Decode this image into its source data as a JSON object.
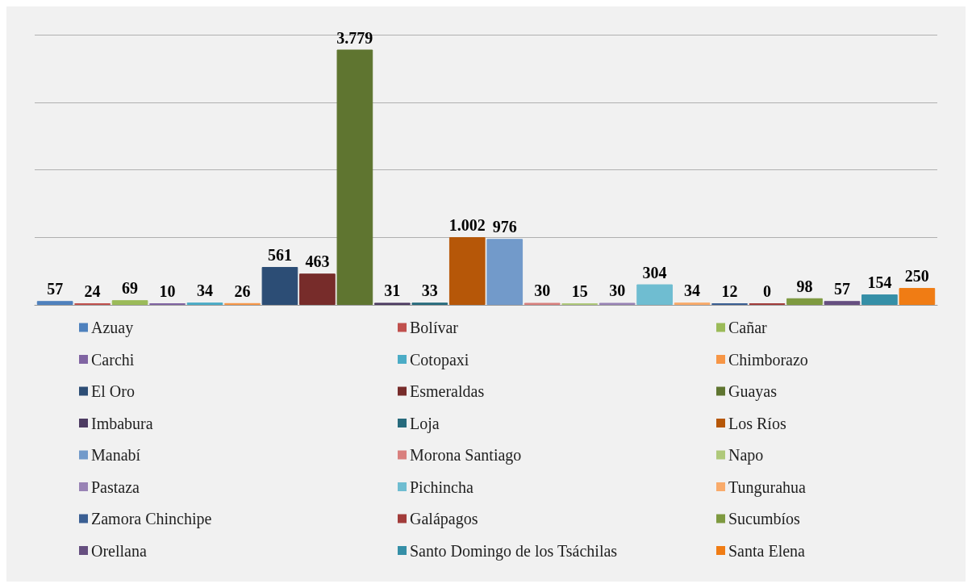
{
  "chart_data": {
    "type": "bar",
    "categories": [
      null
    ],
    "grid": "y",
    "legend": "bottom",
    "series": [
      {
        "name": "Azuay",
        "color": "#4f81bd",
        "values": [
          57
        ],
        "value_labels": [
          "57"
        ]
      },
      {
        "name": "Bolívar",
        "color": "#c0504d",
        "values": [
          24
        ],
        "value_labels": [
          "24"
        ]
      },
      {
        "name": "Cañar",
        "color": "#9bbb59",
        "values": [
          69
        ],
        "value_labels": [
          "69"
        ]
      },
      {
        "name": "Carchi",
        "color": "#8064a2",
        "values": [
          10
        ],
        "value_labels": [
          "10"
        ]
      },
      {
        "name": "Cotopaxi",
        "color": "#4bacc6",
        "values": [
          34
        ],
        "value_labels": [
          "34"
        ]
      },
      {
        "name": "Chimborazo",
        "color": "#f79646",
        "values": [
          26
        ],
        "value_labels": [
          "26"
        ]
      },
      {
        "name": "El Oro",
        "color": "#2c4d75",
        "values": [
          561
        ],
        "value_labels": [
          "561"
        ]
      },
      {
        "name": "Esmeraldas",
        "color": "#772c2a",
        "values": [
          463
        ],
        "value_labels": [
          "463"
        ]
      },
      {
        "name": "Guayas",
        "color": "#5f7530",
        "values": [
          3779
        ],
        "value_labels": [
          "3.779"
        ]
      },
      {
        "name": "Imbabura",
        "color": "#4d3b62",
        "values": [
          31
        ],
        "value_labels": [
          "31"
        ]
      },
      {
        "name": "Loja",
        "color": "#276a7c",
        "values": [
          33
        ],
        "value_labels": [
          "33"
        ]
      },
      {
        "name": "Los Ríos",
        "color": "#b65708",
        "values": [
          1002
        ],
        "value_labels": [
          "1.002"
        ]
      },
      {
        "name": "Manabí",
        "color": "#729aca",
        "values": [
          976
        ],
        "value_labels": [
          "976"
        ]
      },
      {
        "name": "Morona Santiago",
        "color": "#d9807e",
        "values": [
          30
        ],
        "value_labels": [
          "30"
        ]
      },
      {
        "name": "Napo",
        "color": "#afc97a",
        "values": [
          15
        ],
        "value_labels": [
          "15"
        ]
      },
      {
        "name": "Pastaza",
        "color": "#9983b5",
        "values": [
          30
        ],
        "value_labels": [
          "30"
        ]
      },
      {
        "name": "Pichincha",
        "color": "#6fbdd1",
        "values": [
          304
        ],
        "value_labels": [
          "304"
        ]
      },
      {
        "name": "Tungurahua",
        "color": "#f9ab6b",
        "values": [
          34
        ],
        "value_labels": [
          "34"
        ]
      },
      {
        "name": "Zamora Chinchipe",
        "color": "#3a5f93",
        "values": [
          12
        ],
        "value_labels": [
          "12"
        ]
      },
      {
        "name": "Galápagos",
        "color": "#a23c3a",
        "values": [
          0
        ],
        "value_labels": [
          "0"
        ]
      },
      {
        "name": "Sucumbíos",
        "color": "#7e9a40",
        "values": [
          98
        ],
        "value_labels": [
          "98"
        ]
      },
      {
        "name": "Orellana",
        "color": "#664f80",
        "values": [
          57
        ],
        "value_labels": [
          "57"
        ]
      },
      {
        "name": "Santo Domingo de los Tsáchilas",
        "color": "#358fa7",
        "values": [
          154
        ],
        "value_labels": [
          "154"
        ]
      },
      {
        "name": "Santa Elena",
        "color": "#f07c14",
        "values": [
          250
        ],
        "value_labels": [
          "250"
        ]
      }
    ]
  }
}
